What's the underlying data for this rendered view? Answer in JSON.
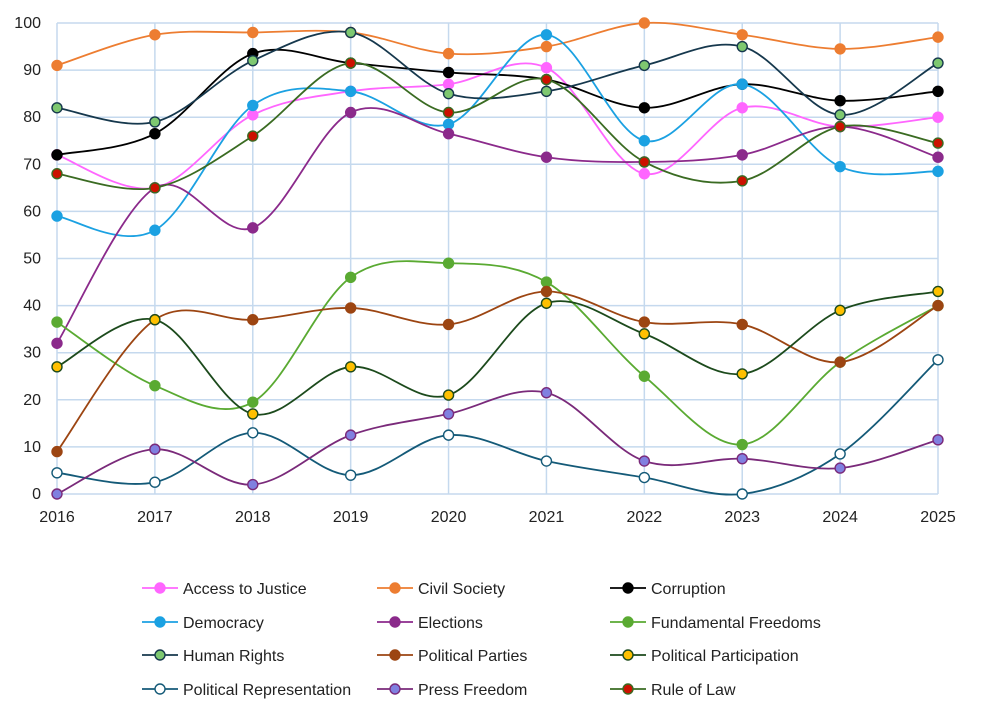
{
  "chart_data": {
    "type": "line",
    "title": "",
    "xlabel": "",
    "ylabel": "",
    "ylim": [
      0,
      100
    ],
    "yticks": [
      "0",
      "10",
      "20",
      "30",
      "40",
      "50",
      "60",
      "70",
      "80",
      "90",
      "100"
    ],
    "grid": true,
    "legend_position": "bottom",
    "categories": [
      "2016",
      "2017",
      "2018",
      "2019",
      "2020",
      "2021",
      "2022",
      "2023",
      "2024",
      "2025"
    ],
    "series": [
      {
        "name": "Access to Justice",
        "line": "#ff66ff",
        "marker": "#ff66ff",
        "values": [
          72,
          65,
          80.5,
          85.5,
          87,
          90.5,
          68,
          82,
          78,
          80
        ]
      },
      {
        "name": "Civil Society",
        "line": "#ed7d31",
        "marker": "#ed7d31",
        "values": [
          91,
          97.5,
          98,
          98,
          93.5,
          95,
          100,
          97.5,
          94.5,
          97
        ]
      },
      {
        "name": "Corruption",
        "line": "#000000",
        "marker": "#000000",
        "values": [
          72,
          76.5,
          93.5,
          91.5,
          89.5,
          88,
          82,
          87,
          83.5,
          85.5
        ]
      },
      {
        "name": "Democracy",
        "line": "#1ba1e2",
        "marker": "#1ba1e2",
        "values": [
          59,
          56,
          82.5,
          85.5,
          78.5,
          97.5,
          75,
          87,
          69.5,
          68.5
        ]
      },
      {
        "name": "Elections",
        "line": "#8b2a8b",
        "marker": "#8b2a8b",
        "values": [
          32,
          65,
          56.5,
          81,
          76.5,
          71.5,
          70.5,
          72,
          78,
          71.5
        ]
      },
      {
        "name": "Fundamental Freedoms",
        "line": "#5aaa32",
        "marker": "#5aaa32",
        "values": [
          36.5,
          23,
          19.5,
          46,
          49,
          45,
          25,
          10.5,
          28,
          40
        ]
      },
      {
        "name": "Human Rights",
        "line": "#16384d",
        "marker": "#7ec870",
        "values": [
          82,
          79,
          92,
          98,
          85,
          85.5,
          91,
          95,
          80.5,
          91.5
        ]
      },
      {
        "name": "Political Parties",
        "line": "#9c4512",
        "marker": "#9c4512",
        "values": [
          9,
          37,
          37,
          39.5,
          36,
          43,
          36.5,
          36,
          28,
          40
        ]
      },
      {
        "name": "Political Participation",
        "line": "#1c4a1c",
        "marker": "#ffc000",
        "values": [
          27,
          37,
          17,
          27,
          21,
          40.5,
          34,
          25.5,
          39,
          43
        ]
      },
      {
        "name": "Political Representation",
        "line": "#145a78",
        "marker": "#ffffff",
        "values": [
          4.5,
          2.5,
          13,
          4,
          12.5,
          7,
          3.5,
          0,
          8.5,
          28.5
        ]
      },
      {
        "name": "Press Freedom",
        "line": "#7a2a7a",
        "marker": "#8080e0",
        "values": [
          0,
          9.5,
          2,
          12.5,
          17,
          21.5,
          7,
          7.5,
          5.5,
          11.5
        ]
      },
      {
        "name": "Rule of Law",
        "line": "#3a6b22",
        "marker": "#cc1100",
        "values": [
          68,
          65,
          76,
          91.5,
          81,
          88,
          70.5,
          66.5,
          78,
          74.5
        ]
      }
    ]
  }
}
